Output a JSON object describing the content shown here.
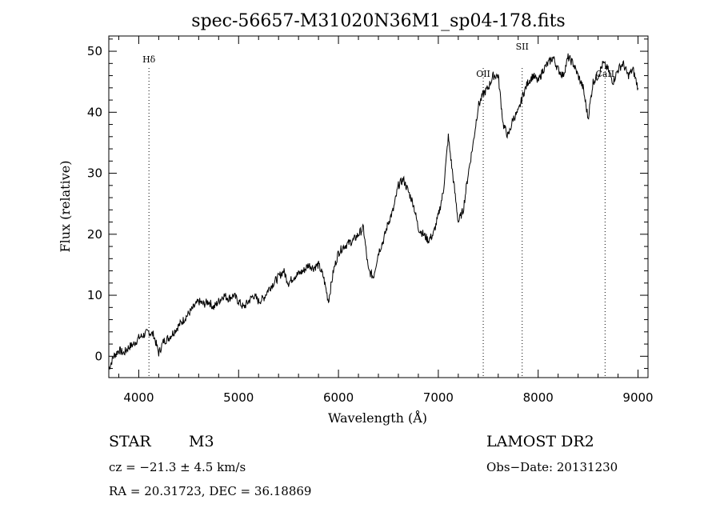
{
  "chart_data": {
    "type": "line",
    "title": "spec-56657-M31020N36M1_sp04-178.fits",
    "xlabel": "Wavelength (Å)",
    "ylabel": "Flux (relative)",
    "xlim": [
      3700,
      9100
    ],
    "ylim": [
      -3.5,
      52.5
    ],
    "xticks": [
      4000,
      5000,
      6000,
      7000,
      8000,
      9000
    ],
    "yticks": [
      0,
      10,
      20,
      30,
      40,
      50
    ],
    "grid": false,
    "series": [
      {
        "x": [
          3700,
          3750,
          3800,
          3850,
          3900,
          3950,
          4000,
          4050,
          4100,
          4150,
          4200,
          4250,
          4300,
          4350,
          4400,
          4450,
          4500,
          4550,
          4600,
          4650,
          4700,
          4750,
          4800,
          4850,
          4900,
          4950,
          5000,
          5050,
          5100,
          5150,
          5200,
          5250,
          5300,
          5350,
          5400,
          5450,
          5500,
          5550,
          5600,
          5650,
          5700,
          5750,
          5800,
          5850,
          5900,
          5950,
          6000,
          6050,
          6100,
          6150,
          6200,
          6250,
          6300,
          6350,
          6400,
          6450,
          6500,
          6550,
          6600,
          6650,
          6700,
          6750,
          6800,
          6850,
          6900,
          6950,
          7000,
          7050,
          7100,
          7150,
          7200,
          7250,
          7300,
          7350,
          7400,
          7450,
          7500,
          7550,
          7600,
          7650,
          7700,
          7750,
          7800,
          7850,
          7900,
          7950,
          8000,
          8050,
          8100,
          8150,
          8200,
          8250,
          8300,
          8350,
          8400,
          8450,
          8500,
          8550,
          8600,
          8650,
          8700,
          8750,
          8800,
          8850,
          8900,
          8950,
          9000
        ],
        "y": [
          -2,
          0,
          1,
          0.5,
          1.5,
          2,
          3,
          3.5,
          4,
          3.5,
          0.5,
          2.5,
          3,
          4,
          5,
          6,
          7,
          8,
          9,
          8.5,
          9,
          8,
          9,
          10,
          9.5,
          10,
          9,
          8,
          9,
          10,
          9,
          9.5,
          11,
          12,
          13,
          14,
          12,
          13,
          13.5,
          14,
          15,
          14.5,
          15,
          13,
          9,
          14,
          17,
          18,
          18.5,
          19,
          20,
          21,
          14,
          13,
          17,
          19,
          22,
          24,
          28,
          29,
          27,
          25,
          21,
          20,
          19,
          20,
          23,
          27,
          36,
          29,
          22,
          24,
          30,
          35,
          41,
          43,
          44,
          46,
          46,
          38,
          36,
          39,
          40,
          43,
          45,
          46,
          45,
          47,
          48,
          49,
          47,
          46,
          49,
          48,
          46,
          44,
          39,
          45,
          46,
          48,
          47,
          45,
          47,
          48,
          46,
          47,
          44
        ]
      }
    ],
    "annotations": [
      {
        "label": "Hδ",
        "x": 4102
      },
      {
        "label": "OII",
        "x": 7450
      },
      {
        "label": "SII",
        "x": 7840
      },
      {
        "label": "CaII",
        "x": 8670
      }
    ],
    "footer": {
      "object_type": "STAR",
      "subclass": "M3",
      "survey": "LAMOST DR2",
      "redshift": "cz = −21.3 ± 4.5 km/s",
      "obs_date": "Obs−Date: 20131230",
      "coords": "RA =  20.31723, DEC =  36.18869"
    }
  }
}
